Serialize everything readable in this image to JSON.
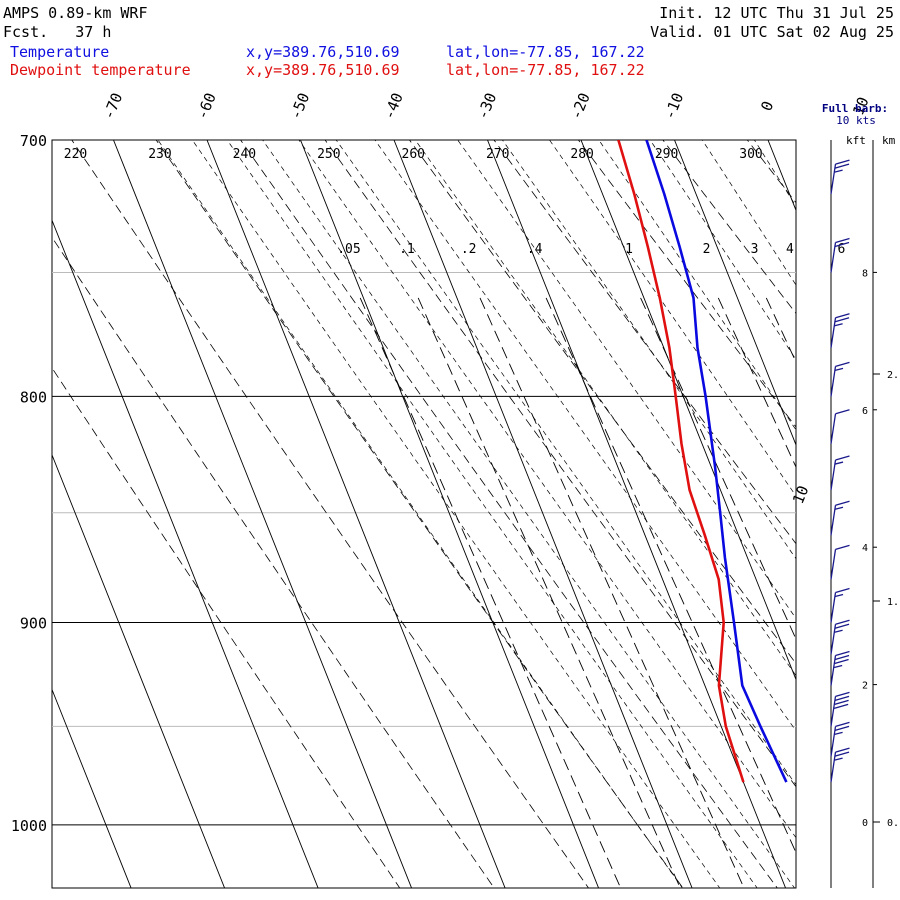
{
  "header": {
    "model": "AMPS 0.89-km WRF",
    "forecast": "Fcst.   37 h",
    "init": "Init. 12 UTC Thu 31 Jul 25",
    "valid": "Valid. 01 UTC Sat 02 Aug 25",
    "temp_label": "Temperature",
    "dew_label": "Dewpoint temperature",
    "temp_xy": "x,y=389.76,510.69",
    "dew_xy": "x,y=389.76,510.69",
    "temp_latlon": "lat,lon=-77.85, 167.22",
    "dew_latlon": "lat,lon=-77.85, 167.22"
  },
  "wind_panel": {
    "barb_legend_line1": "Full barb:",
    "barb_legend_line2": "10 kts",
    "unit_kft": "kft",
    "unit_km": "km",
    "kft_ticks": [
      "8",
      "6",
      "4",
      "2",
      "0"
    ],
    "km_ticks": [
      "2.",
      "1.",
      "0."
    ]
  },
  "chart_data": {
    "type": "line",
    "title": "",
    "xlabel": "",
    "ylabel": "",
    "y_scale": "log-pressure",
    "pressure_ticks": [
      "700",
      "800",
      "900",
      "1000"
    ],
    "ylim_hPa": [
      1045,
      700
    ],
    "temperature_ticks": [
      "-70",
      "-60",
      "-50",
      "-40",
      "-30",
      "-20",
      "-10",
      "0",
      "10"
    ],
    "theta_labels": [
      "220",
      "230",
      "240",
      "250",
      "260",
      "270",
      "280",
      "290",
      "300"
    ],
    "mixing_ratio_labels": [
      ".05",
      ".1",
      ".2",
      ".4",
      "1",
      "2",
      "3",
      "4",
      "6"
    ],
    "colors": {
      "temperature": "#0a0ae0",
      "dewpoint": "#e01010"
    },
    "series": [
      {
        "name": "Temperature",
        "points": [
          {
            "p": 978,
            "t": -25.4
          },
          {
            "p": 950,
            "t": -25.8
          },
          {
            "p": 930,
            "t": -26.0
          },
          {
            "p": 900,
            "t": -24.2
          },
          {
            "p": 870,
            "t": -22.4
          },
          {
            "p": 850,
            "t": -21.0
          },
          {
            "p": 830,
            "t": -19.6
          },
          {
            "p": 800,
            "t": -17.6
          },
          {
            "p": 780,
            "t": -16.4
          },
          {
            "p": 760,
            "t": -14.7
          },
          {
            "p": 740,
            "t": -14.0
          },
          {
            "p": 720,
            "t": -13.4
          },
          {
            "p": 700,
            "t": -13.0
          }
        ]
      },
      {
        "name": "Dewpoint temperature",
        "points": [
          {
            "p": 978,
            "t": -30.0
          },
          {
            "p": 950,
            "t": -29.5
          },
          {
            "p": 930,
            "t": -28.5
          },
          {
            "p": 900,
            "t": -25.3
          },
          {
            "p": 880,
            "t": -24.0
          },
          {
            "p": 860,
            "t": -23.6
          },
          {
            "p": 840,
            "t": -23.3
          },
          {
            "p": 820,
            "t": -22.2
          },
          {
            "p": 800,
            "t": -20.8
          },
          {
            "p": 780,
            "t": -19.4
          },
          {
            "p": 760,
            "t": -18.3
          },
          {
            "p": 740,
            "t": -17.4
          },
          {
            "p": 720,
            "t": -16.6
          },
          {
            "p": 700,
            "t": -16.0
          }
        ]
      }
    ],
    "wind_barbs": [
      {
        "p": 720,
        "speed_kts": 25
      },
      {
        "p": 750,
        "speed_kts": 20
      },
      {
        "p": 780,
        "speed_kts": 25
      },
      {
        "p": 800,
        "speed_kts": 15
      },
      {
        "p": 820,
        "speed_kts": 10
      },
      {
        "p": 840,
        "speed_kts": 15
      },
      {
        "p": 860,
        "speed_kts": 15
      },
      {
        "p": 880,
        "speed_kts": 10
      },
      {
        "p": 900,
        "speed_kts": 15
      },
      {
        "p": 915,
        "speed_kts": 25
      },
      {
        "p": 930,
        "speed_kts": 35
      },
      {
        "p": 950,
        "speed_kts": 40
      },
      {
        "p": 965,
        "speed_kts": 25
      },
      {
        "p": 978,
        "speed_kts": 25
      }
    ]
  }
}
